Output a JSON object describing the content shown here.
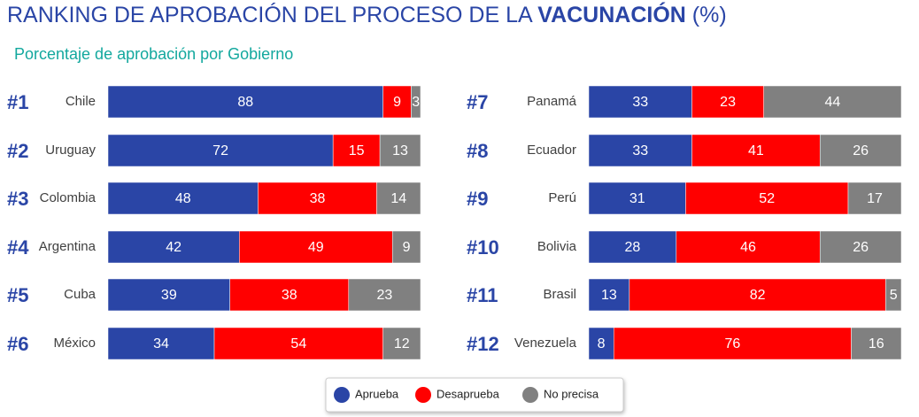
{
  "header": {
    "title": "RANKING DE APROBACIÓN DEL PROCESO DE LA",
    "title_emphasis": "VACUNACIÓN",
    "title_unit": "(%)",
    "subtitle": "Porcentaje de aprobación por Gobierno"
  },
  "chart_data": [
    {
      "type": "bar",
      "orientation": "horizontal",
      "stacked": true,
      "xlim": [
        0,
        100
      ],
      "ranks": [
        "#1",
        "#2",
        "#3",
        "#4",
        "#5",
        "#6"
      ],
      "categories": [
        "Chile",
        "Uruguay",
        "Colombia",
        "Argentina",
        "Cuba",
        "México"
      ],
      "series": [
        {
          "name": "Aprueba",
          "color": "#2a45a6",
          "values": [
            88,
            72,
            48,
            42,
            39,
            34
          ]
        },
        {
          "name": "Desaprueba",
          "color": "#ff0000",
          "values": [
            9,
            15,
            38,
            49,
            38,
            54
          ]
        },
        {
          "name": "No precisa",
          "color": "#808080",
          "values": [
            3,
            13,
            14,
            9,
            23,
            12
          ]
        }
      ]
    },
    {
      "type": "bar",
      "orientation": "horizontal",
      "stacked": true,
      "xlim": [
        0,
        100
      ],
      "ranks": [
        "#7",
        "#8",
        "#9",
        "#10",
        "#11",
        "#12"
      ],
      "categories": [
        "Panamá",
        "Ecuador",
        "Perú",
        "Bolivia",
        "Brasil",
        "Venezuela"
      ],
      "series": [
        {
          "name": "Aprueba",
          "color": "#2a45a6",
          "values": [
            33,
            33,
            31,
            28,
            13,
            8
          ]
        },
        {
          "name": "Desaprueba",
          "color": "#ff0000",
          "values": [
            23,
            41,
            52,
            46,
            82,
            76
          ]
        },
        {
          "name": "No precisa",
          "color": "#808080",
          "values": [
            44,
            26,
            17,
            26,
            5,
            16
          ]
        }
      ]
    }
  ]
}
